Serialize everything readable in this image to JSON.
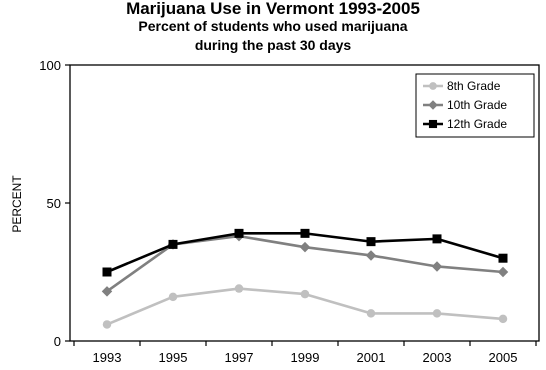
{
  "chart_data": {
    "type": "line",
    "title": "Marijuana Use in Vermont 1993-2005",
    "subtitle_line1": "Percent of students who used marijuana",
    "subtitle_line2": "during the past 30 days",
    "xlabel": "",
    "ylabel": "PERCENT",
    "x": [
      "1993",
      "1995",
      "1997",
      "1999",
      "2001",
      "2003",
      "2005"
    ],
    "ylim": [
      0,
      100
    ],
    "yticks": [
      0,
      50,
      100
    ],
    "grid": false,
    "legend_position": "top-right",
    "series": [
      {
        "name": "8th Grade",
        "values": [
          6,
          16,
          19,
          17,
          10,
          10,
          8
        ],
        "color": "#c0c0c0",
        "marker": "circle"
      },
      {
        "name": "10th Grade",
        "values": [
          18,
          35,
          38,
          34,
          31,
          27,
          25
        ],
        "color": "#808080",
        "marker": "diamond"
      },
      {
        "name": "12th Grade",
        "values": [
          25,
          35,
          39,
          39,
          36,
          37,
          30
        ],
        "color": "#000000",
        "marker": "square"
      }
    ]
  }
}
